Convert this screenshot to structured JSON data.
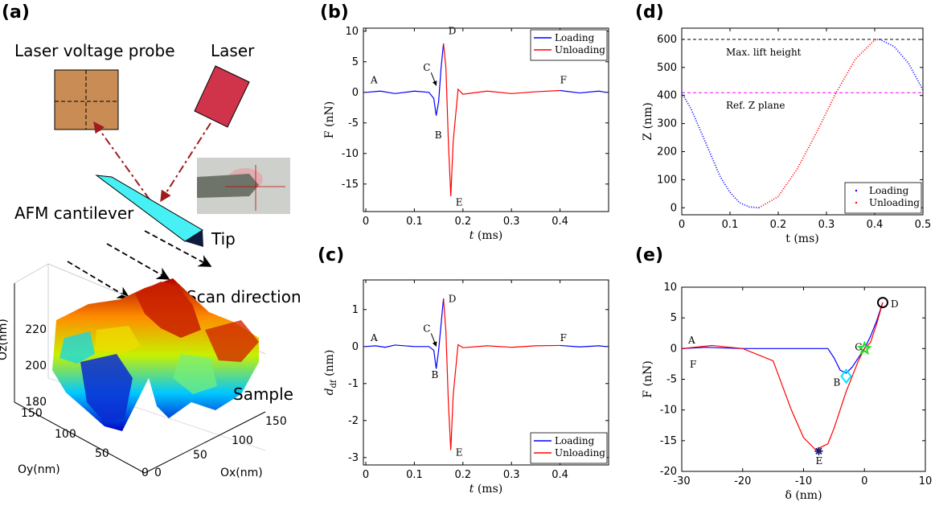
{
  "panels": {
    "a": "(a)",
    "b": "(b)",
    "c": "(c)",
    "d": "(d)",
    "e": "(e)"
  },
  "schematic": {
    "laser_voltage_probe": "Laser voltage probe",
    "laser": "Laser",
    "cantilever": "AFM cantilever",
    "tip": "Tip",
    "scan_direction": "Scan direction",
    "sample": "Sample",
    "surface_axes": {
      "z_label": "Oz(nm)",
      "z_ticks": [
        "180",
        "200",
        "220"
      ],
      "y_label": "Oy(nm)",
      "y_ticks": [
        "0",
        "50",
        "100",
        "150"
      ],
      "x_label": "Ox(nm)",
      "x_ticks": [
        "0",
        "50",
        "100",
        "150"
      ]
    },
    "colors": {
      "probe": "#c98c55",
      "laser": "#d0344a",
      "cantilever": "#47f0f5",
      "beam": "#a01c1c"
    }
  },
  "chart_data": [
    {
      "id": "b",
      "type": "line",
      "xlabel": "t",
      "xunit": " (ms)",
      "ylabel": "F (nN)",
      "xlim": [
        -0.005,
        0.5
      ],
      "ylim": [
        -19.5,
        10.5
      ],
      "xticks": [
        0,
        0.1,
        0.2,
        0.3,
        0.4
      ],
      "yticks": [
        10,
        5,
        0,
        -5,
        -10,
        -15
      ],
      "series": [
        {
          "name": "Loading",
          "color": "#0000ff",
          "x": [
            0,
            0.03,
            0.06,
            0.1,
            0.13,
            0.14,
            0.145,
            0.15,
            0.155,
            0.16
          ],
          "y": [
            0,
            0.2,
            -0.2,
            0.2,
            0,
            -1,
            -3.8,
            -1.5,
            4,
            8
          ]
        },
        {
          "name": "Unloading",
          "color": "#ff0000",
          "x": [
            0.16,
            0.165,
            0.17,
            0.175,
            0.18,
            0.19,
            0.2,
            0.25,
            0.3,
            0.35,
            0.4
          ],
          "y": [
            8,
            4,
            -8,
            -17,
            -8,
            0.5,
            -0.3,
            0.2,
            -0.2,
            0.1,
            0.3
          ]
        },
        {
          "name": "",
          "color": "#0000ff",
          "x": [
            0.4,
            0.44,
            0.48,
            0.495
          ],
          "y": [
            0.3,
            -0.1,
            0.2,
            0
          ]
        }
      ],
      "annotations": [
        {
          "text": "A",
          "x": 0.01,
          "y": 1.5
        },
        {
          "text": "B",
          "x": 0.142,
          "y": -7.5
        },
        {
          "text": "C",
          "x": 0.118,
          "y": 3.5
        },
        {
          "text": "D",
          "x": 0.17,
          "y": 9.5
        },
        {
          "text": "E",
          "x": 0.185,
          "y": -18.5
        },
        {
          "text": "F",
          "x": 0.4,
          "y": 1.5
        }
      ],
      "legend": "top-right"
    },
    {
      "id": "c",
      "type": "line",
      "xlabel": "t",
      "xunit": " (ms)",
      "ylabel": "d_df (nm)",
      "xlim": [
        -0.005,
        0.5
      ],
      "ylim": [
        -3.2,
        1.8
      ],
      "xticks": [
        0,
        0.1,
        0.2,
        0.3,
        0.4
      ],
      "yticks": [
        1,
        0,
        -1,
        -2,
        -3
      ],
      "series": [
        {
          "name": "Loading",
          "color": "#0000ff",
          "x": [
            0,
            0.02,
            0.04,
            0.06,
            0.1,
            0.13,
            0.14,
            0.145,
            0.15,
            0.155,
            0.16
          ],
          "y": [
            0,
            0.02,
            -0.02,
            0.04,
            0,
            0,
            -0.1,
            -0.6,
            -0.1,
            0.6,
            1.3
          ]
        },
        {
          "name": "Unloading",
          "color": "#ff0000",
          "x": [
            0.16,
            0.165,
            0.17,
            0.175,
            0.18,
            0.19,
            0.2,
            0.25,
            0.3,
            0.35,
            0.4
          ],
          "y": [
            1.3,
            0.4,
            -1.5,
            -2.8,
            -1.3,
            0.05,
            -0.03,
            0.02,
            -0.02,
            0.02,
            0.03
          ]
        },
        {
          "name": "",
          "color": "#0000ff",
          "x": [
            0.4,
            0.44,
            0.48,
            0.495
          ],
          "y": [
            0.03,
            -0.01,
            0.02,
            0
          ]
        }
      ],
      "annotations": [
        {
          "text": "A",
          "x": 0.01,
          "y": 0.15
        },
        {
          "text": "B",
          "x": 0.135,
          "y": -0.85
        },
        {
          "text": "C",
          "x": 0.118,
          "y": 0.4
        },
        {
          "text": "D",
          "x": 0.17,
          "y": 1.2
        },
        {
          "text": "E",
          "x": 0.185,
          "y": -2.95
        },
        {
          "text": "F",
          "x": 0.4,
          "y": 0.15
        }
      ],
      "legend": "bottom-right"
    },
    {
      "id": "d",
      "type": "line",
      "xlabel": "t (ms)",
      "ylabel": "Z (nm)",
      "xlim": [
        0,
        0.5
      ],
      "ylim": [
        -25,
        640
      ],
      "xticks": [
        0,
        0.1,
        0.2,
        0.3,
        0.4,
        0.5
      ],
      "yticks": [
        0,
        100,
        200,
        300,
        400,
        500,
        600
      ],
      "series": [
        {
          "name": "Loading",
          "color": "#0000ff",
          "style": "dotted",
          "x": [
            0,
            0.02,
            0.04,
            0.06,
            0.08,
            0.1,
            0.12,
            0.14,
            0.16
          ],
          "y": [
            410,
            350,
            270,
            190,
            110,
            55,
            18,
            3,
            0
          ]
        },
        {
          "name": "Unloading",
          "color": "#ff0000",
          "style": "dotted",
          "x": [
            0.16,
            0.2,
            0.24,
            0.28,
            0.32,
            0.36,
            0.4,
            0.41
          ],
          "y": [
            0,
            40,
            140,
            270,
            410,
            530,
            598,
            600
          ]
        },
        {
          "name": "",
          "color": "#0000ff",
          "style": "dotted",
          "x": [
            0.41,
            0.44,
            0.47,
            0.5
          ],
          "y": [
            600,
            575,
            515,
            420
          ]
        }
      ],
      "reference_lines": [
        {
          "label": "Max. lift height",
          "y": 600,
          "color": "#000000"
        },
        {
          "label": "Ref. Z plane",
          "y": 410,
          "color": "#ff00ff"
        }
      ],
      "legend": "bottom-right"
    },
    {
      "id": "e",
      "type": "line",
      "xlabel": "δ (nm)",
      "ylabel": "F (nN)",
      "xlim": [
        -30,
        10
      ],
      "ylim": [
        -20,
        10
      ],
      "xticks": [
        -30,
        -20,
        -10,
        0,
        10
      ],
      "yticks": [
        10,
        5,
        0,
        -5,
        -10,
        -15,
        -20
      ],
      "series": [
        {
          "name": "Loading",
          "color": "#0000ff",
          "x": [
            -30,
            -26,
            -20,
            -10,
            -6,
            -5,
            -4,
            -3,
            -2,
            -1,
            0,
            1,
            2,
            3
          ],
          "y": [
            0,
            0.2,
            0,
            0,
            0,
            -1.5,
            -3.5,
            -4,
            -3,
            -1.5,
            0,
            2,
            4.5,
            7.5
          ]
        },
        {
          "name": "Unloading",
          "color": "#ff0000",
          "x": [
            3,
            2,
            1,
            0,
            -1,
            -2,
            -3,
            -4,
            -5,
            -6,
            -7,
            -8,
            -10,
            -12,
            -15,
            -20,
            -25,
            -30
          ],
          "y": [
            7.5,
            4,
            1,
            0,
            -2,
            -4.5,
            -7,
            -10,
            -13,
            -15.5,
            -16,
            -16.5,
            -14.5,
            -10,
            -2,
            0,
            0.5,
            0
          ]
        }
      ],
      "markers": [
        {
          "label": "A",
          "x": -30,
          "y": 0.3
        },
        {
          "label": "B",
          "x": -3,
          "y": -4.5,
          "shape": "diamond",
          "color": "#00e5ff"
        },
        {
          "label": "C",
          "x": 0,
          "y": 0,
          "shape": "star",
          "color": "#22dd22"
        },
        {
          "label": "D",
          "x": 3,
          "y": 7.5,
          "shape": "circle",
          "color": "#000000"
        },
        {
          "label": "E",
          "x": -7.5,
          "y": -16.7,
          "shape": "asterisk",
          "color": "#1a1a6e"
        },
        {
          "label": "F",
          "x": -30,
          "y": -1.5
        }
      ]
    }
  ]
}
